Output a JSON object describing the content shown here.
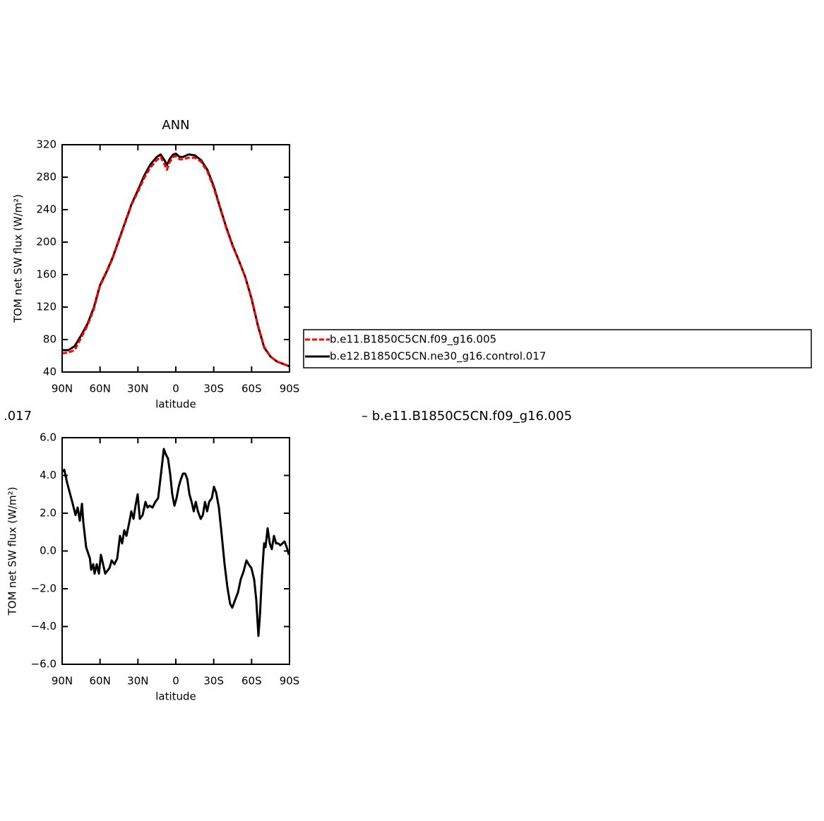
{
  "chart_data": [
    {
      "type": "line",
      "title": "ANN",
      "xlabel": "latitude",
      "ylabel": "TOM net SW flux (W/m²)",
      "x": [
        90,
        85,
        80,
        75,
        70,
        65,
        60,
        55,
        50,
        45,
        40,
        35,
        30,
        25,
        20,
        15,
        12,
        9,
        7,
        5,
        2,
        0,
        -3,
        -6,
        -10,
        -15,
        -20,
        -25,
        -30,
        -35,
        -40,
        -45,
        -50,
        -55,
        -60,
        -65,
        -70,
        -75,
        -80,
        -85,
        -90
      ],
      "series": [
        {
          "name": "b.e11.B1850C5CN.f09_g16.005",
          "color": "#ff0000",
          "dashed": true,
          "values": [
            63,
            64,
            67,
            82,
            97,
            117,
            146,
            162,
            180,
            202,
            224,
            246,
            262,
            279,
            292,
            301,
            305,
            296,
            289,
            298,
            305,
            306,
            302,
            302,
            304,
            304,
            299,
            287,
            267,
            242,
            217,
            195,
            177,
            157,
            131,
            98,
            71,
            59,
            53,
            50,
            47
          ]
        },
        {
          "name": "b.e12.B1850C5CN.ne30_g16.control.017",
          "color": "#000000",
          "dashed": false,
          "values": [
            67,
            67,
            72,
            85,
            99,
            119,
            147,
            163,
            181,
            203,
            225,
            247,
            264,
            282,
            296,
            305,
            308,
            301,
            295,
            302,
            308,
            309,
            305,
            305,
            308,
            307,
            301,
            289,
            269,
            243,
            218,
            196,
            177,
            157,
            130,
            97,
            70,
            59,
            53,
            50,
            47
          ]
        }
      ],
      "xlim": [
        90,
        -90
      ],
      "xticks": [
        {
          "value": 90,
          "label": "90N"
        },
        {
          "value": 60,
          "label": "60N"
        },
        {
          "value": 30,
          "label": "30N"
        },
        0,
        {
          "value": -30,
          "label": "30S"
        },
        {
          "value": -60,
          "label": "60S"
        },
        {
          "value": -90,
          "label": "90S"
        }
      ],
      "ylim": [
        40,
        320
      ],
      "yticks": [
        40,
        80,
        120,
        160,
        200,
        240,
        280,
        320
      ],
      "legend": "right"
    },
    {
      "type": "line",
      "title_parts": [
        ".017",
        "– b.e11.B1850C5CN.f09_g16.005"
      ],
      "xlabel": "latitude",
      "ylabel": "TOM net SW flux (W/m²)",
      "x": [
        90,
        88.3,
        86,
        82,
        79.4,
        77.7,
        76,
        74.3,
        73.2,
        71,
        68,
        67,
        65.4,
        64.3,
        62.6,
        60.9,
        59.3,
        57.6,
        55.9,
        52.5,
        50.8,
        48.6,
        46.4,
        44.2,
        42.5,
        40.8,
        39.1,
        36.9,
        35.2,
        33.5,
        31.9,
        30.2,
        28.5,
        26.3,
        24,
        22.4,
        20.7,
        18.4,
        16.2,
        14,
        11.7,
        9.5,
        7.8,
        6.2,
        4.5,
        2.8,
        1.1,
        -0.6,
        -2.3,
        -4,
        -5.7,
        -7.4,
        -9.1,
        -10.8,
        -12.5,
        -14.2,
        -15.8,
        -17.5,
        -19.7,
        -21.4,
        -23.1,
        -24.8,
        -26.4,
        -28.5,
        -30.2,
        -31.9,
        -34.1,
        -36.4,
        -38.6,
        -40.8,
        -43,
        -44.7,
        -46.9,
        -49.2,
        -51.4,
        -53.6,
        -55.9,
        -57.6,
        -59.8,
        -62,
        -63.7,
        -65.4,
        -66.6,
        -68.2,
        -69.9,
        -71,
        -72.7,
        -74.4,
        -76,
        -77.7,
        -79.4,
        -81.1,
        -82.8,
        -84.4,
        -86.1,
        -87.8,
        -89.5
      ],
      "series": [
        {
          "color": "#000000",
          "dashed": false,
          "values": [
            4.2,
            4.3,
            3.6,
            2.6,
            1.9,
            2.3,
            1.6,
            2.5,
            1.5,
            0.2,
            -0.4,
            -1.0,
            -0.7,
            -1.2,
            -0.7,
            -1.2,
            -0.2,
            -0.7,
            -1.2,
            -0.9,
            -0.5,
            -0.7,
            -0.4,
            0.8,
            0.4,
            1.1,
            0.8,
            1.5,
            2.1,
            1.7,
            2.4,
            3.0,
            1.7,
            1.9,
            2.6,
            2.3,
            2.4,
            2.3,
            2.6,
            2.8,
            4.1,
            5.4,
            5.1,
            4.9,
            4.1,
            3.0,
            2.4,
            2.8,
            3.4,
            3.8,
            4.1,
            4.1,
            3.8,
            3.0,
            2.6,
            2.1,
            2.6,
            2.1,
            1.7,
            1.9,
            2.6,
            2.1,
            2.6,
            2.8,
            3.4,
            3.1,
            2.3,
            0.8,
            -0.7,
            -1.9,
            -2.8,
            -3.0,
            -2.6,
            -2.2,
            -1.5,
            -1.1,
            -0.5,
            -0.7,
            -0.9,
            -1.5,
            -2.6,
            -4.5,
            -3.4,
            -1.3,
            0.4,
            0.2,
            1.2,
            0.4,
            0.1,
            0.8,
            0.4,
            0.4,
            0.3,
            0.4,
            0.5,
            0.2,
            -0.2
          ]
        }
      ],
      "xlim": [
        90,
        -90
      ],
      "xticks": [
        {
          "value": 90,
          "label": "90N"
        },
        {
          "value": 60,
          "label": "60N"
        },
        {
          "value": 30,
          "label": "30N"
        },
        0,
        {
          "value": -30,
          "label": "30S"
        },
        {
          "value": -60,
          "label": "60S"
        },
        {
          "value": -90,
          "label": "90S"
        }
      ],
      "ylim": [
        -6,
        6
      ],
      "yticks": [
        {
          "value": -6,
          "label": "−6.0"
        },
        {
          "value": -4,
          "label": "−4.0"
        },
        {
          "value": -2,
          "label": "−2.0"
        },
        {
          "value": 0,
          "label": "0.0"
        },
        {
          "value": 2,
          "label": "2.0"
        },
        {
          "value": 4,
          "label": "4.0"
        },
        {
          "value": 6,
          "label": "6.0"
        }
      ]
    }
  ]
}
